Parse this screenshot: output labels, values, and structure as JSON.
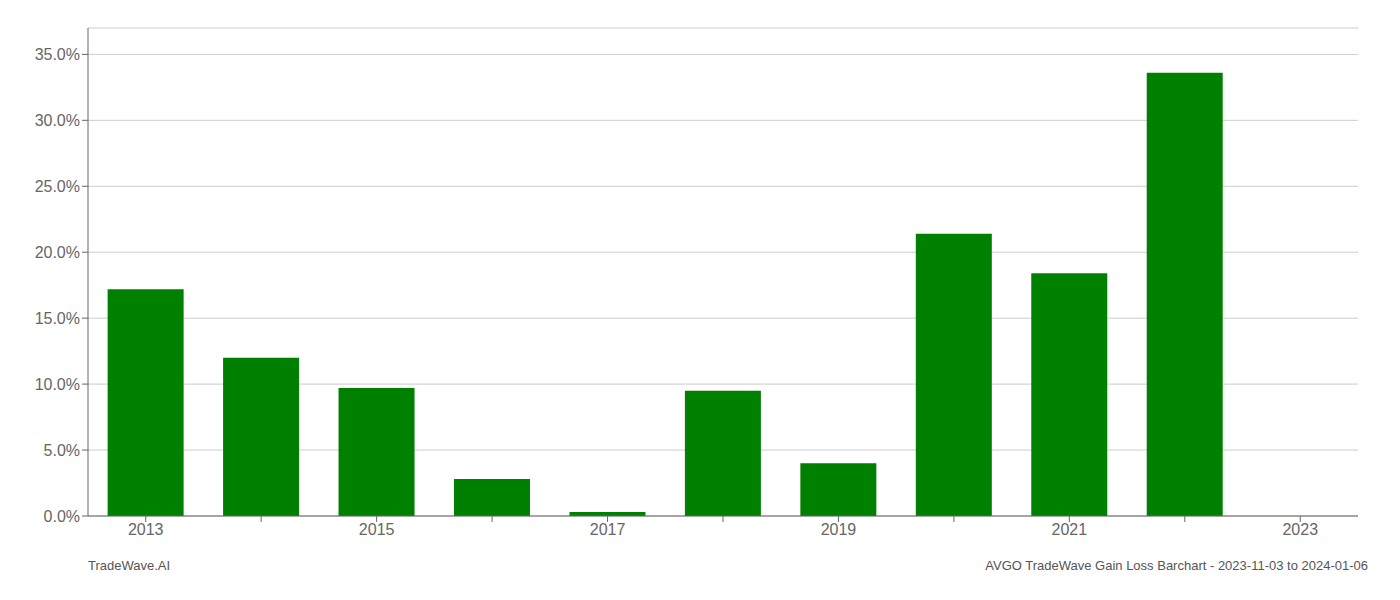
{
  "chart_data": {
    "type": "bar",
    "title": "AVGO TradeWave Gain Loss Barchart - 2023-11-03 to 2024-01-06",
    "annotations": [
      "TradeWave.AI"
    ],
    "categories": [
      "2013",
      null,
      "2015",
      null,
      "2017",
      null,
      "2019",
      null,
      "2021",
      null,
      "2023"
    ],
    "values": [
      0.172,
      0.12,
      0.097,
      0.028,
      0.003,
      0.095,
      0.04,
      0.214,
      0.184,
      0.336,
      0.0
    ],
    "color": "#008000",
    "ylim": [
      0,
      0.37
    ],
    "yticks": [
      {
        "value": 0.0,
        "label": "0.0%"
      },
      {
        "value": 0.05,
        "label": "5.0%"
      },
      {
        "value": 0.1,
        "label": "10.0%"
      },
      {
        "value": 0.15,
        "label": "15.0%"
      },
      {
        "value": 0.2,
        "label": "20.0%"
      },
      {
        "value": 0.25,
        "label": "25.0%"
      },
      {
        "value": 0.3,
        "label": "30.0%"
      },
      {
        "value": 0.35,
        "label": "35.0%"
      }
    ],
    "grid": true
  }
}
